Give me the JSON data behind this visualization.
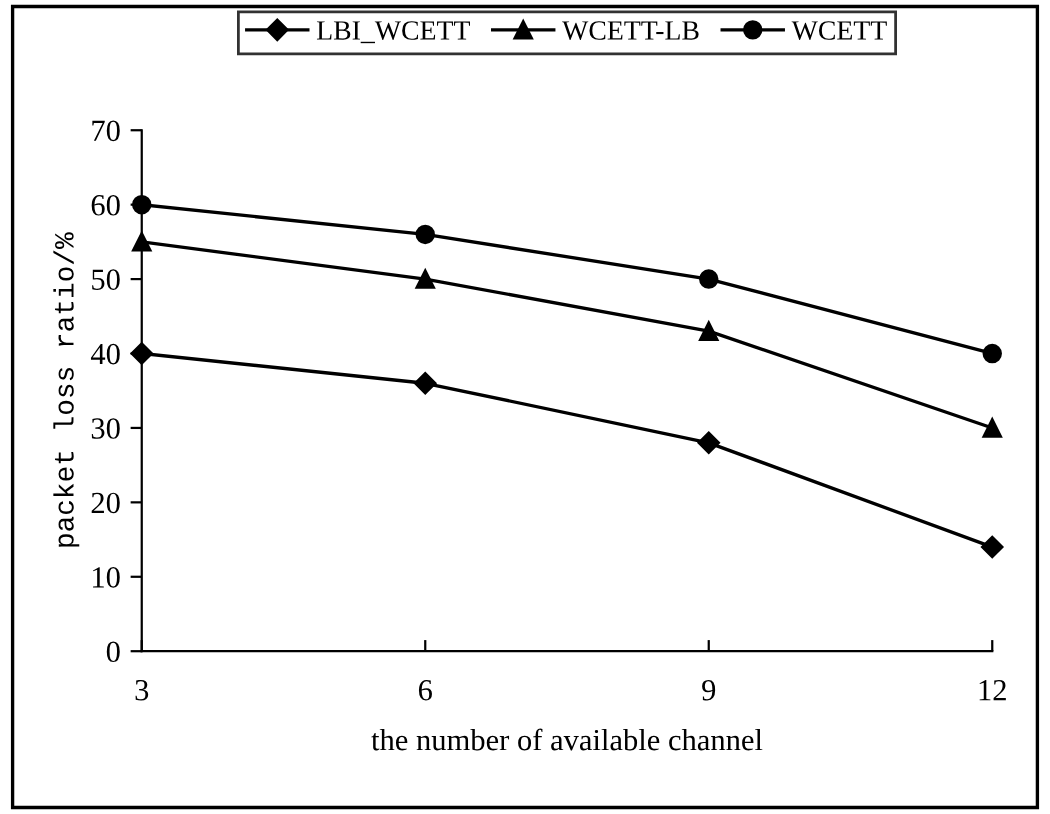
{
  "chart_data": {
    "type": "line",
    "xlabel": "the number of available channel",
    "ylabel": "packet loss ratio/%",
    "x": [
      3,
      6,
      9,
      12
    ],
    "series": [
      {
        "name": "LBI_WCETT",
        "color": "#000000",
        "marker": "diamond",
        "values": [
          40,
          36,
          28,
          14
        ]
      },
      {
        "name": "WCETT-LB",
        "color": "#000000",
        "marker": "triangle",
        "values": [
          55,
          50,
          43,
          30
        ]
      },
      {
        "name": "WCETT",
        "color": "#000000",
        "marker": "circle",
        "values": [
          60,
          56,
          50,
          40
        ]
      }
    ],
    "xlim": [
      3,
      12
    ],
    "xticks": [
      3,
      6,
      9,
      12
    ],
    "ylim": [
      0,
      70
    ],
    "yticks": [
      0,
      10,
      20,
      30,
      40,
      50,
      60,
      70
    ],
    "grid": false,
    "legend": "top",
    "line_style": "solid"
  }
}
